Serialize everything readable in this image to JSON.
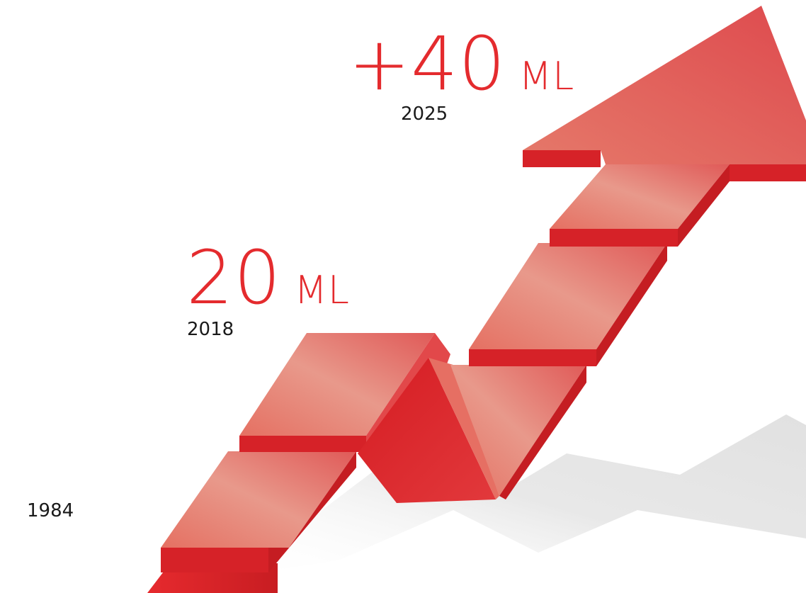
{
  "milestones": [
    {
      "value": "",
      "unit": "",
      "year": "1984"
    },
    {
      "value": "20",
      "unit": "ML",
      "year": "2018"
    },
    {
      "value": "+40",
      "unit": "ML",
      "year": "2025"
    }
  ],
  "colors": {
    "accent": "#e42b2e",
    "arrow_light": "#e8978a",
    "arrow_dark": "#d42026",
    "shadow": "#d9d9d9",
    "year_text": "#1a1a1a"
  },
  "icons": {
    "growth_arrow": "rising-staircase-arrow-icon"
  }
}
